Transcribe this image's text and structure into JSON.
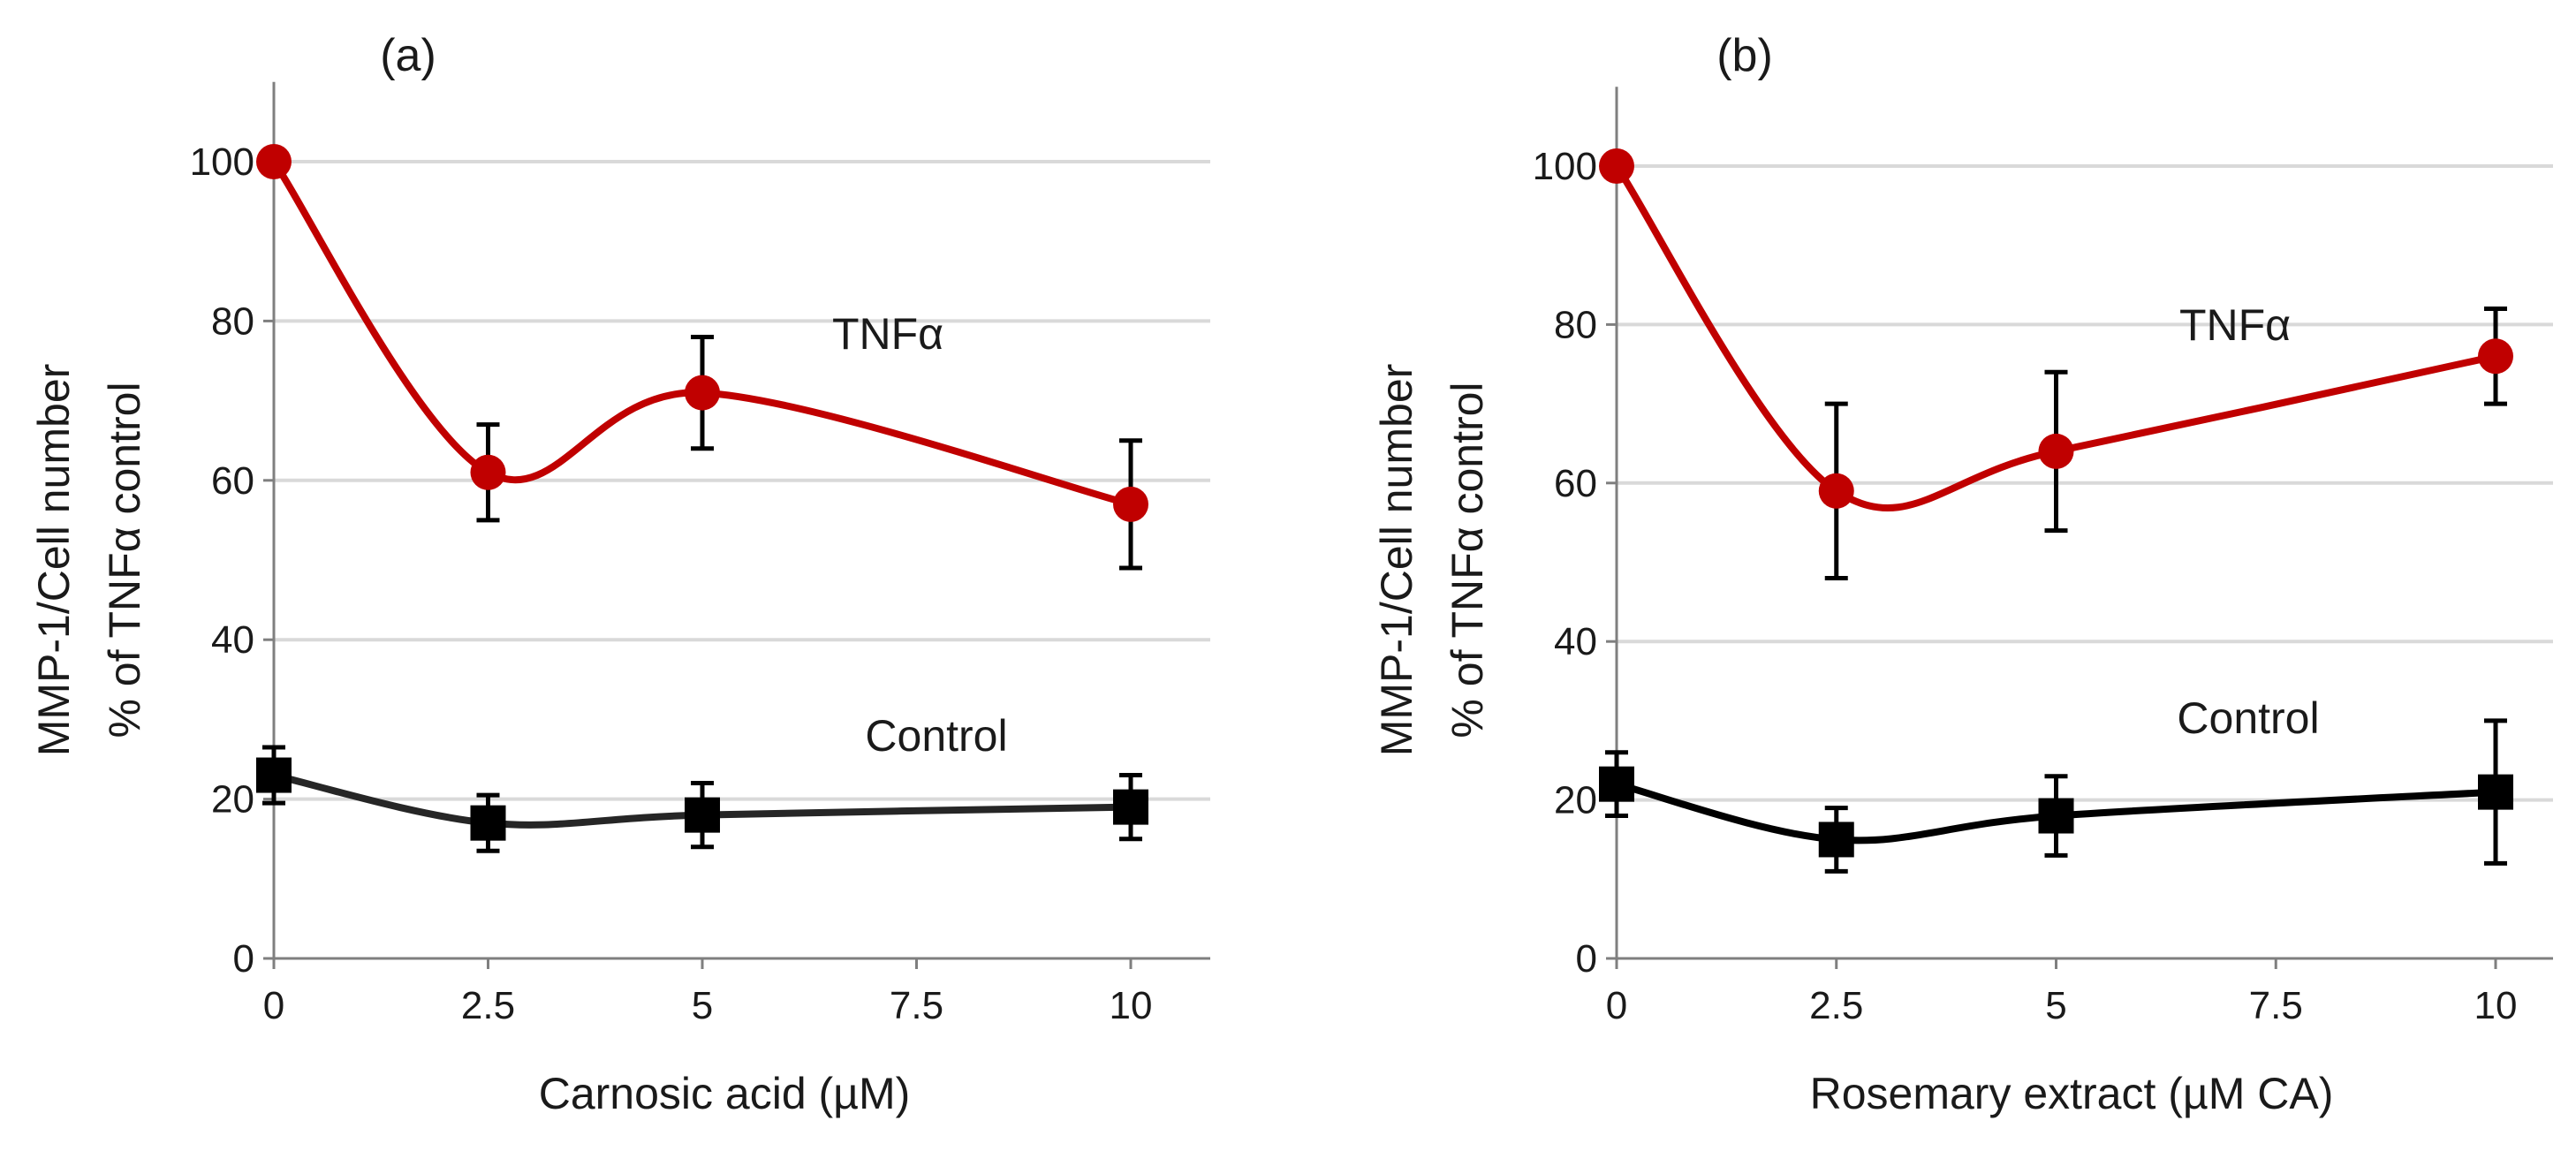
{
  "chart_data": [
    {
      "type": "line",
      "panel_label": "(a)",
      "xlabel": "Carnosic acid (µM)",
      "ylabel": [
        "MMP-1/Cell number",
        "% of TNFα control"
      ],
      "x": [
        0,
        2.5,
        5,
        10
      ],
      "xticks": [
        0,
        2.5,
        5,
        7.5,
        10
      ],
      "xtick_labels": [
        "0",
        "2.5",
        "5",
        "7.5",
        "10"
      ],
      "yticks": [
        0,
        20,
        40,
        60,
        80,
        100
      ],
      "ytick_labels": [
        "0",
        "20",
        "40",
        "60",
        "80",
        "100"
      ],
      "xlim": [
        0,
        11
      ],
      "ylim": [
        0,
        110
      ],
      "grid": true,
      "series": [
        {
          "name": "TNFα",
          "color": "#c00000",
          "marker": "circle",
          "values": [
            100,
            61,
            71,
            57
          ],
          "errors": [
            0,
            6,
            7,
            8
          ]
        },
        {
          "name": "Control",
          "color": "#262626",
          "marker": "square",
          "values": [
            23,
            17,
            18,
            19
          ],
          "errors": [
            3.5,
            3.5,
            4,
            4
          ]
        }
      ]
    },
    {
      "type": "line",
      "panel_label": "(b)",
      "xlabel": "Rosemary extract (µM CA)",
      "ylabel": [
        "MMP-1/Cell number",
        "% of TNFα control"
      ],
      "x": [
        0,
        2.5,
        5,
        10
      ],
      "xticks": [
        0,
        2.5,
        5,
        7.5,
        10
      ],
      "xtick_labels": [
        "0",
        "2.5",
        "5",
        "7.5",
        "10"
      ],
      "yticks": [
        0,
        20,
        40,
        60,
        80,
        100
      ],
      "ytick_labels": [
        "0",
        "20",
        "40",
        "60",
        "80",
        "100"
      ],
      "xlim": [
        0,
        11
      ],
      "ylim": [
        0,
        110
      ],
      "grid": true,
      "series": [
        {
          "name": "TNFα",
          "color": "#c00000",
          "marker": "circle",
          "values": [
            100,
            59,
            64,
            76
          ],
          "errors": [
            0,
            11,
            10,
            6
          ]
        },
        {
          "name": "Control",
          "color": "#000000",
          "marker": "square",
          "values": [
            22,
            15,
            18,
            21
          ],
          "errors": [
            4,
            4,
            5,
            9
          ]
        }
      ]
    }
  ]
}
